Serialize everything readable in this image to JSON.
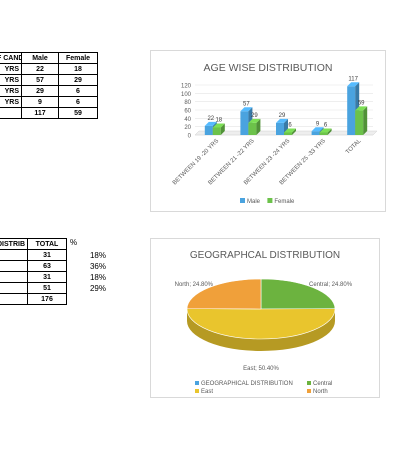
{
  "age_table": {
    "headers": [
      "F CANDI",
      "Male",
      "Female"
    ],
    "rows": [
      [
        "YRS",
        "22",
        "18"
      ],
      [
        "YRS",
        "57",
        "29"
      ],
      [
        "YRS",
        "29",
        "6"
      ],
      [
        "YRS",
        "9",
        "6"
      ],
      [
        "",
        "117",
        "59"
      ]
    ]
  },
  "geo_table": {
    "headers": [
      "DISTRIB",
      "TOTAL"
    ],
    "pct_header": "%",
    "rows": [
      [
        "",
        "31",
        "18%"
      ],
      [
        "",
        "63",
        "36%"
      ],
      [
        "",
        "31",
        "18%"
      ],
      [
        "",
        "51",
        "29%"
      ],
      [
        "",
        "176",
        ""
      ]
    ]
  },
  "chart_data": [
    {
      "type": "bar",
      "title": "AGE WISE DISTRIBUTION",
      "categories": [
        "BETWEEN 19 -20 YRS",
        "BETWEEN 21 -22 YRS",
        "BETWEEN 23 -24 YRS",
        "BETWEEN 25 -33 YRS",
        "TOTAL"
      ],
      "series": [
        {
          "name": "Male",
          "values": [
            22,
            57,
            29,
            9,
            117
          ],
          "color": "#4aa3df"
        },
        {
          "name": "Female",
          "values": [
            18,
            29,
            6,
            6,
            59
          ],
          "color": "#6cc24a"
        }
      ],
      "ylim": [
        0,
        120
      ],
      "yticks": [
        0,
        20,
        40,
        60,
        80,
        100,
        120
      ],
      "grid": true,
      "legend_placement": "bottom"
    },
    {
      "type": "pie",
      "title": "GEOGRAPHCAL DISTRIBUTION",
      "slices": [
        {
          "name": "Central",
          "value": 24.8,
          "label": "Central; 24.80%",
          "color": "#6cb33f"
        },
        {
          "name": "East",
          "value": 50.4,
          "label": "East; 50.40%",
          "color": "#e9c52d"
        },
        {
          "name": "North",
          "value": 24.8,
          "label": "North; 24.80%",
          "color": "#f0a03a"
        }
      ],
      "legend": [
        {
          "name": "GEOGRAPHICAL DISTRIBUTION",
          "color": "#4aa3df"
        },
        {
          "name": "Central",
          "color": "#6cb33f"
        },
        {
          "name": "East",
          "color": "#e9c52d"
        },
        {
          "name": "North",
          "color": "#f0a03a"
        }
      ],
      "legend_placement": "bottom"
    }
  ]
}
